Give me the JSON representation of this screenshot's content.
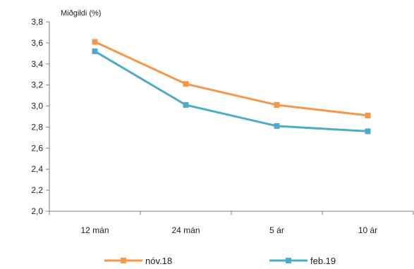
{
  "chart_data": {
    "type": "line",
    "ylabel": "Miðgildi (%)",
    "categories": [
      "12 mán",
      "24 mán",
      "5 ár",
      "10 ár"
    ],
    "ylim": [
      2.0,
      3.8
    ],
    "yticks": [
      "2,0",
      "2,2",
      "2,4",
      "2,6",
      "2,8",
      "3,0",
      "3,2",
      "3,4",
      "3,6",
      "3,8"
    ],
    "grid": false,
    "legend_position": "bottom",
    "series": [
      {
        "name": "nóv.18",
        "values": [
          3.61,
          3.21,
          3.01,
          2.91
        ],
        "color": "#F79646",
        "marker": "square"
      },
      {
        "name": "feb.19",
        "values": [
          3.52,
          3.01,
          2.81,
          2.76
        ],
        "color": "#4BACC6",
        "marker": "square"
      }
    ]
  }
}
